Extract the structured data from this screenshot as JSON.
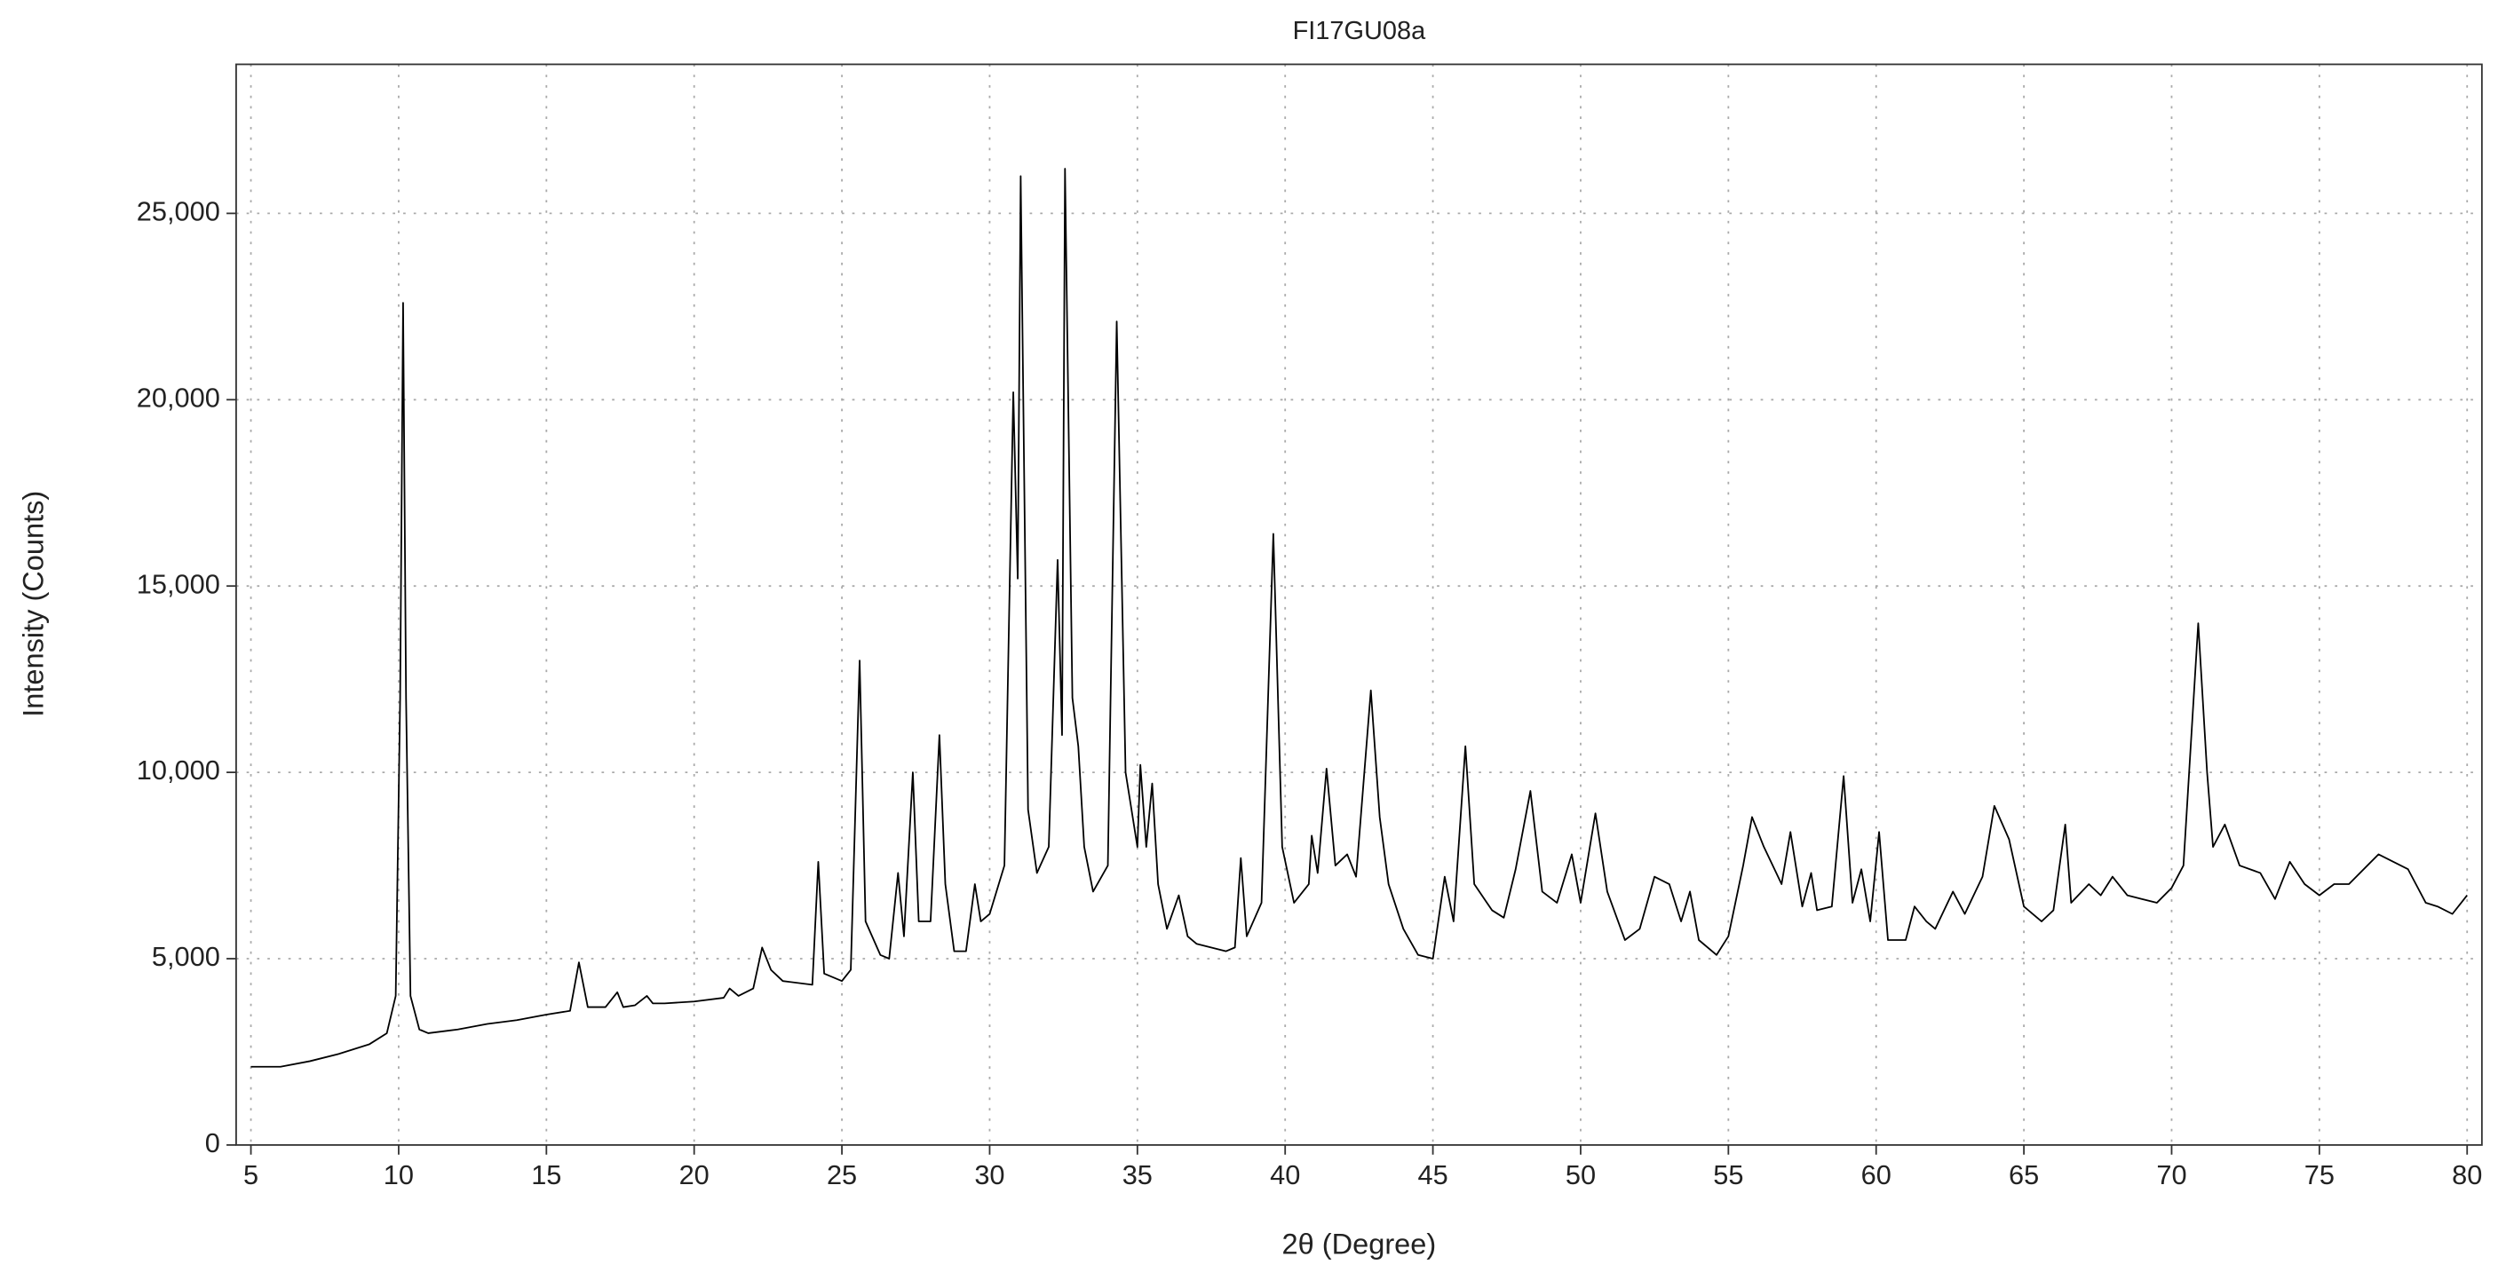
{
  "chart_data": {
    "type": "line",
    "title": "FI17GU08a",
    "xlabel": "2θ (Degree)",
    "ylabel": "Intensity (Counts)",
    "x": [
      5,
      6,
      7,
      8,
      9,
      9.6,
      9.9,
      10.05,
      10.15,
      10.25,
      10.4,
      10.7,
      11,
      12,
      13,
      14,
      15,
      15.8,
      16.1,
      16.4,
      17,
      17.4,
      17.6,
      18,
      18.4,
      18.6,
      19,
      20,
      21,
      21.2,
      21.5,
      22,
      22.3,
      22.6,
      23,
      24,
      24.2,
      24.4,
      25,
      25.3,
      25.6,
      25.8,
      26.3,
      26.6,
      26.9,
      27.1,
      27.4,
      27.6,
      28,
      28.3,
      28.5,
      28.8,
      29.2,
      29.5,
      29.7,
      30,
      30.5,
      30.8,
      30.95,
      31.05,
      31.3,
      31.6,
      32,
      32.3,
      32.45,
      32.55,
      32.8,
      33,
      33.2,
      33.5,
      34,
      34.3,
      34.6,
      35,
      35.1,
      35.3,
      35.5,
      35.7,
      36,
      36.4,
      36.7,
      37,
      38,
      38.3,
      38.5,
      38.7,
      39.2,
      39.6,
      39.9,
      40.3,
      40.8,
      40.9,
      41.1,
      41.4,
      41.7,
      42.1,
      42.4,
      42.9,
      43.2,
      43.5,
      44,
      44.5,
      45,
      45.4,
      45.7,
      46.1,
      46.4,
      47,
      47.4,
      47.8,
      48.3,
      48.7,
      49.2,
      49.7,
      50,
      50.5,
      50.9,
      51.5,
      52,
      52.5,
      53,
      53.4,
      53.7,
      54,
      54.6,
      55,
      55.5,
      55.8,
      56.2,
      56.5,
      56.8,
      57.1,
      57.5,
      57.8,
      58,
      58.5,
      58.9,
      59.2,
      59.5,
      59.8,
      60.1,
      60.4,
      61,
      61.3,
      61.7,
      62,
      62.6,
      63,
      63.6,
      64,
      64.5,
      65,
      65.6,
      66,
      66.4,
      66.6,
      67.2,
      67.6,
      68,
      68.5,
      69,
      69.5,
      70,
      70.4,
      70.9,
      71.2,
      71.4,
      71.8,
      72.3,
      73,
      73.5,
      74,
      74.5,
      75,
      75.5,
      76,
      77,
      78,
      78.6,
      79,
      79.5,
      80
    ],
    "series": [
      {
        "name": "FI17GU08a",
        "color": "#000000",
        "values": [
          2100,
          2100,
          2250,
          2450,
          2700,
          3000,
          4000,
          12000,
          22600,
          12000,
          4000,
          3100,
          3000,
          3100,
          3250,
          3350,
          3500,
          3600,
          4900,
          3700,
          3700,
          4100,
          3700,
          3750,
          4000,
          3800,
          3800,
          3850,
          3950,
          4200,
          4000,
          4200,
          5300,
          4700,
          4400,
          4300,
          7600,
          4600,
          4400,
          4700,
          13000,
          6000,
          5100,
          5000,
          7300,
          5600,
          10000,
          6000,
          6000,
          11000,
          7000,
          5200,
          5200,
          7000,
          6000,
          6200,
          7500,
          20200,
          15200,
          26000,
          9000,
          7300,
          8000,
          15700,
          11000,
          26200,
          12000,
          10700,
          8000,
          6800,
          7500,
          22100,
          10000,
          8000,
          10200,
          8000,
          9700,
          7000,
          5800,
          6700,
          5600,
          5400,
          5200,
          5300,
          7700,
          5600,
          6500,
          16400,
          8000,
          6500,
          7000,
          8300,
          7300,
          10100,
          7500,
          7800,
          7200,
          12200,
          8800,
          7000,
          5800,
          5100,
          5000,
          7200,
          6000,
          10700,
          7000,
          6300,
          6100,
          7400,
          9500,
          6800,
          6500,
          7800,
          6500,
          8900,
          6800,
          5500,
          5800,
          7200,
          7000,
          6000,
          6800,
          5500,
          5100,
          5600,
          7500,
          8800,
          8000,
          7500,
          7000,
          8400,
          6400,
          7300,
          6300,
          6400,
          9900,
          6500,
          7400,
          6000,
          8400,
          5500,
          5500,
          6400,
          6000,
          5800,
          6800,
          6200,
          7200,
          9100,
          8200,
          6400,
          6000,
          6300,
          8600,
          6500,
          7000,
          6700,
          7200,
          6700,
          6600,
          6500,
          6900,
          7500,
          14000,
          10000,
          8000,
          8600,
          7500,
          7300,
          6600,
          7600,
          7000,
          6700,
          7000,
          7000,
          7800,
          7400,
          6500,
          6400,
          6200,
          6700
        ]
      }
    ],
    "xlim": [
      4.5,
      80.5
    ],
    "ylim": [
      0,
      29000
    ],
    "xticks": [
      5,
      10,
      15,
      20,
      25,
      30,
      35,
      40,
      45,
      50,
      55,
      60,
      65,
      70,
      75,
      80
    ],
    "yticks": [
      0,
      {
        "value": 5000,
        "label": "5,000"
      },
      {
        "value": 10000,
        "label": "10,000"
      },
      {
        "value": 15000,
        "label": "15,000"
      },
      {
        "value": 20000,
        "label": "20,000"
      },
      {
        "value": 25000,
        "label": "25,000"
      }
    ],
    "grid": true
  }
}
